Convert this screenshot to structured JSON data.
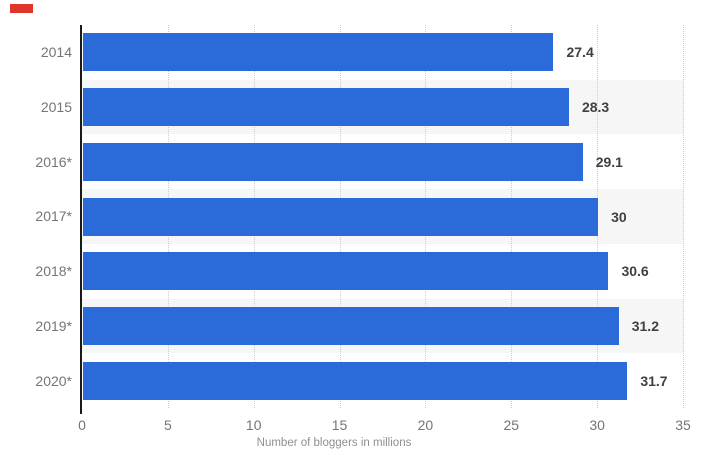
{
  "page": {
    "background": "#ffffff"
  },
  "red_marker": {
    "visible": true
  },
  "chart_data": {
    "type": "bar",
    "orientation": "horizontal",
    "categories": [
      "2014",
      "2015",
      "2016*",
      "2017*",
      "2018*",
      "2019*",
      "2020*"
    ],
    "values": [
      27.4,
      28.3,
      29.1,
      30,
      30.6,
      31.2,
      31.7
    ],
    "value_labels": [
      "27.4",
      "28.3",
      "29.1",
      "30",
      "30.6",
      "31.2",
      "31.7"
    ],
    "xlabel": "Number of bloggers in millions",
    "ylabel": "",
    "xlim": [
      0,
      35
    ],
    "xticks": [
      0,
      5,
      10,
      15,
      20,
      25,
      30,
      35
    ],
    "grid": "vertical-dotted",
    "legend": "none",
    "alternating_row_bands": [
      false,
      true,
      false,
      true,
      false,
      true,
      false
    ]
  },
  "colors": {
    "page_bg": "#ffffff",
    "bar": "#2b6bd9",
    "band": "#ffffff",
    "band_alt": "#f6f6f6",
    "axis": "#1a1a1a",
    "gridline": "#cccccc",
    "category_label": "#757575",
    "tick_label": "#757575",
    "value_label": "#404040",
    "xlabel": "#8f8f8f",
    "marker_red": "#e0352b"
  }
}
